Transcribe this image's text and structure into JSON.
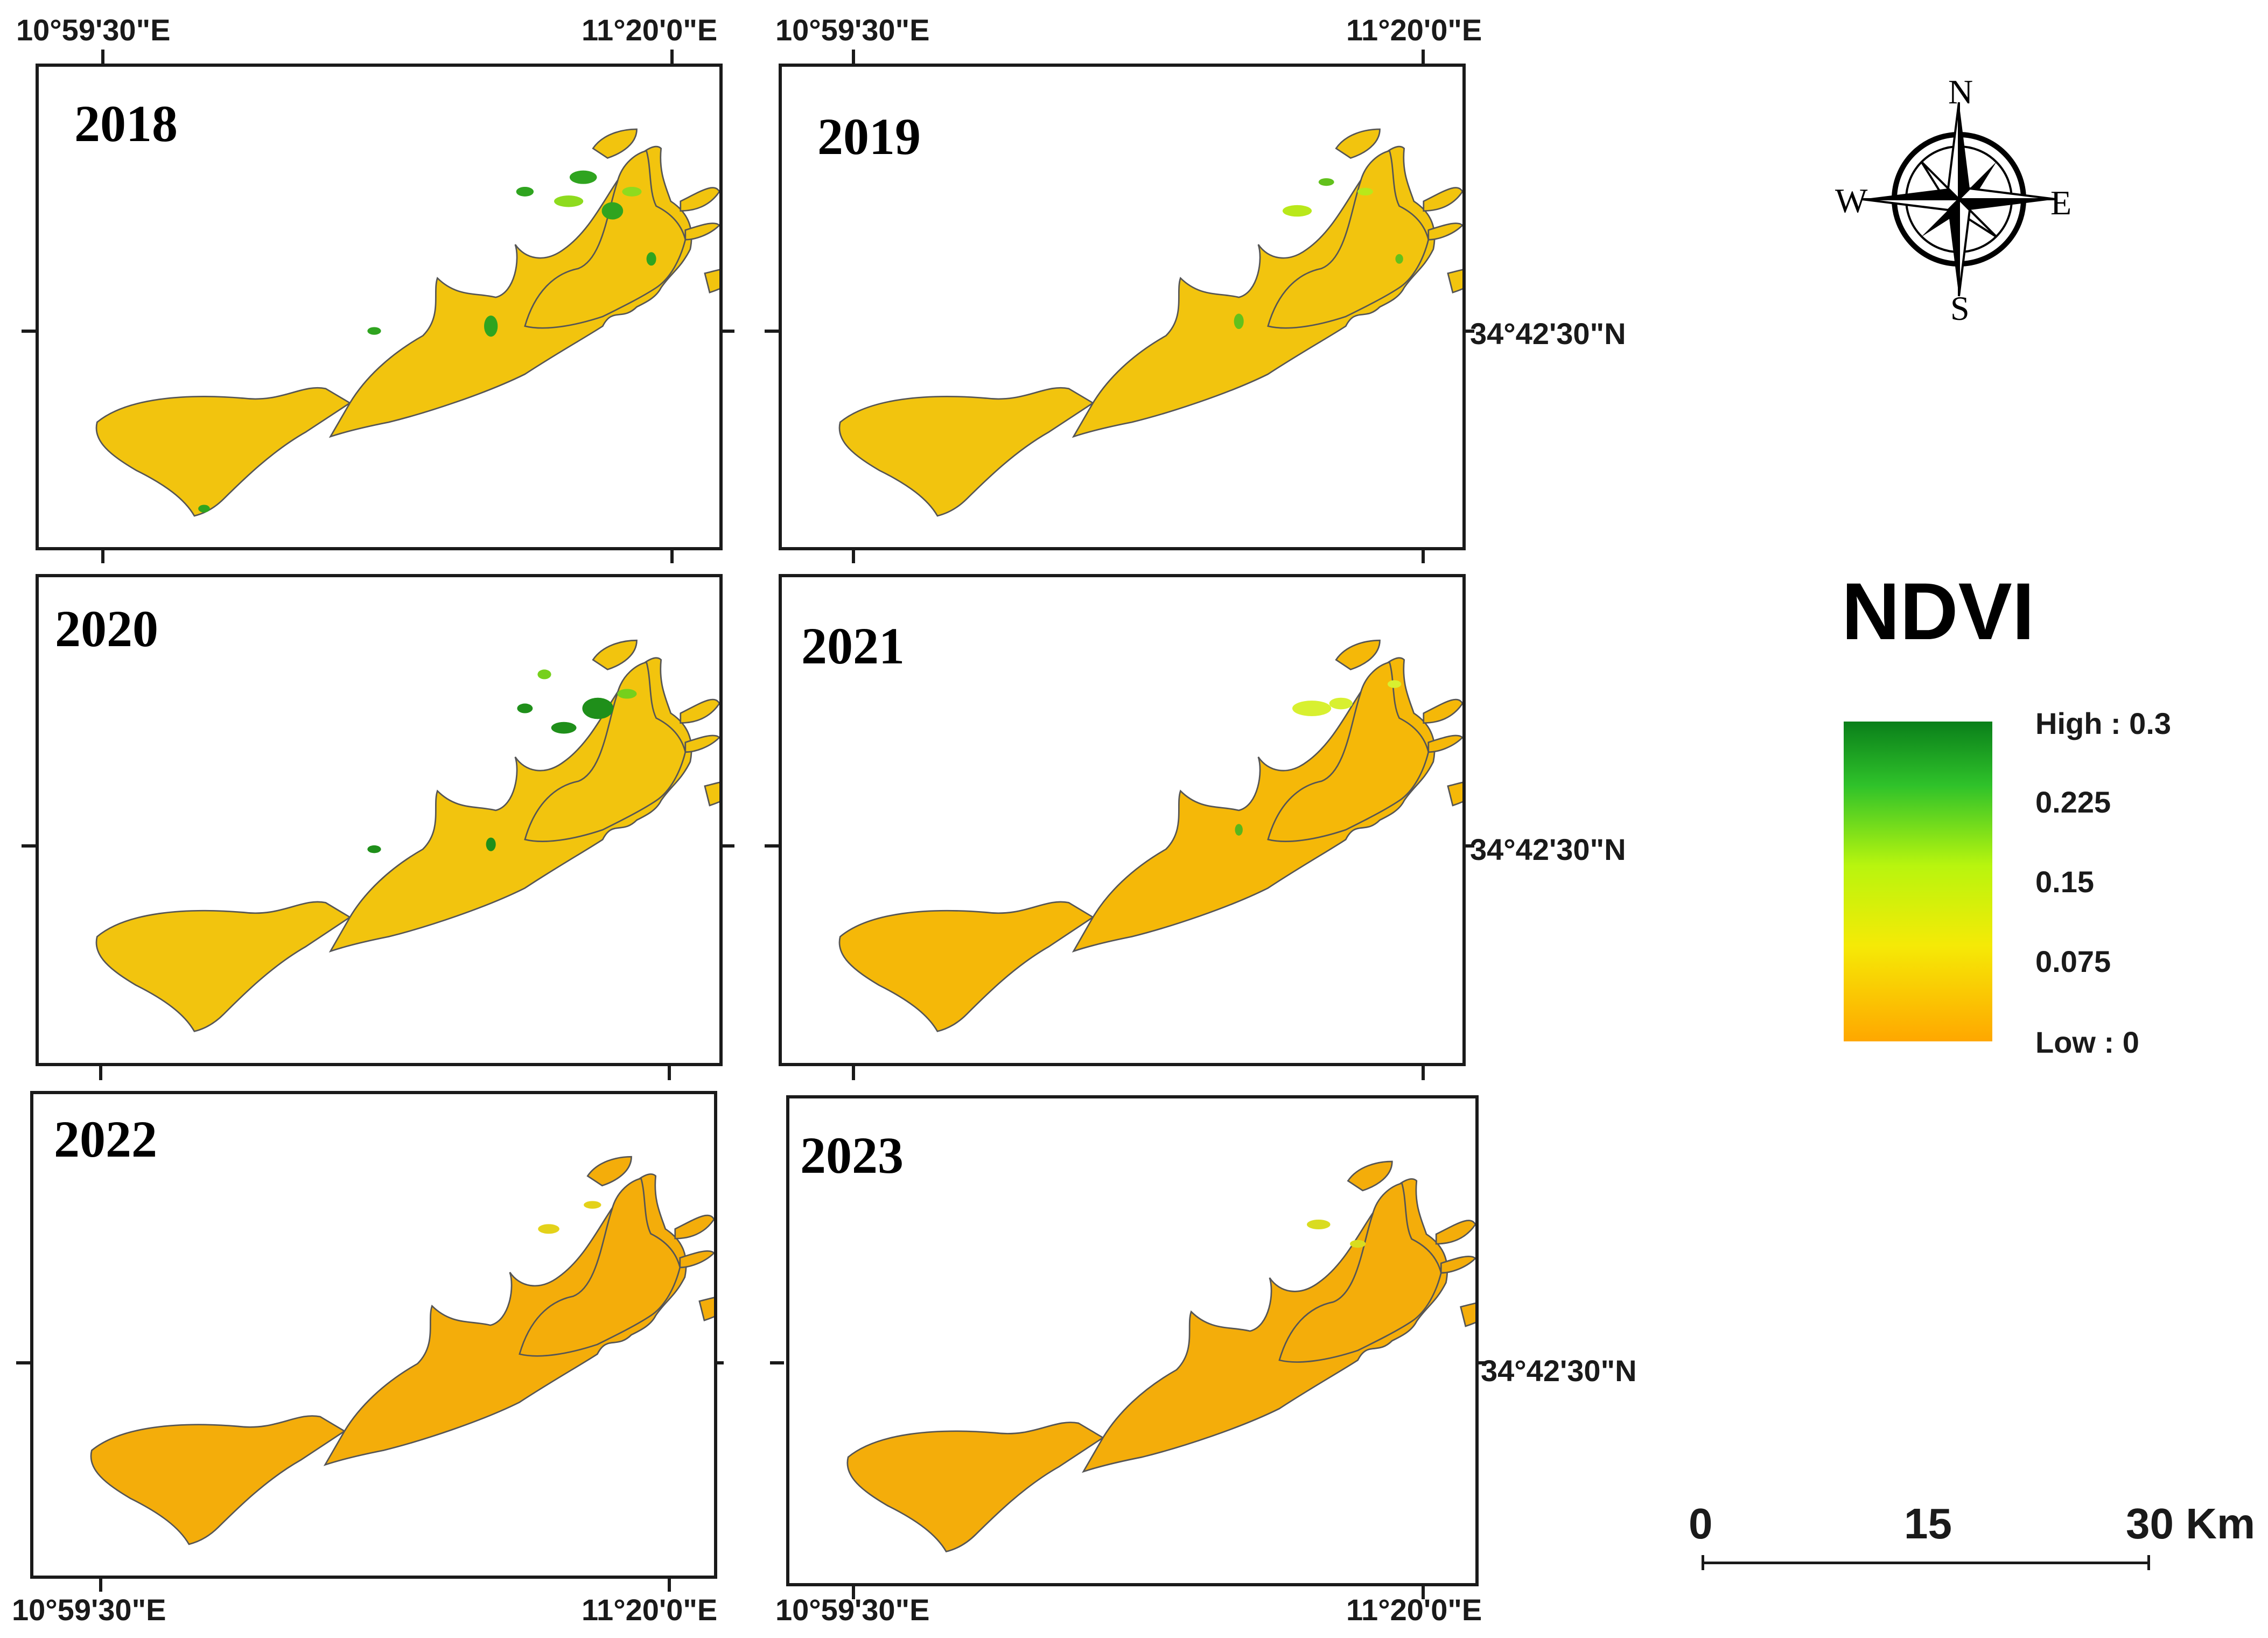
{
  "coordinates": {
    "lon_west": "10°59'30\"E",
    "lon_east": "11°20'0\"E",
    "lat_mid": "34°42'30\"N"
  },
  "panels": [
    {
      "year": "2018"
    },
    {
      "year": "2019"
    },
    {
      "year": "2020"
    },
    {
      "year": "2021"
    },
    {
      "year": "2022"
    },
    {
      "year": "2023"
    }
  ],
  "compass": {
    "n": "N",
    "s": "S",
    "e": "E",
    "w": "W"
  },
  "legend": {
    "title": "NDVI",
    "labels": [
      "High : 0.3",
      "0.225",
      "0.15",
      "0.075",
      "Low : 0"
    ],
    "colors": {
      "high": "#0a7f1a",
      "mid_high": "#2fc22a",
      "mid": "#b8f50e",
      "mid_low": "#f5ea06",
      "low": "#ffa700"
    }
  },
  "scale_bar": {
    "labels": [
      "0",
      "15",
      "30 Km"
    ]
  }
}
